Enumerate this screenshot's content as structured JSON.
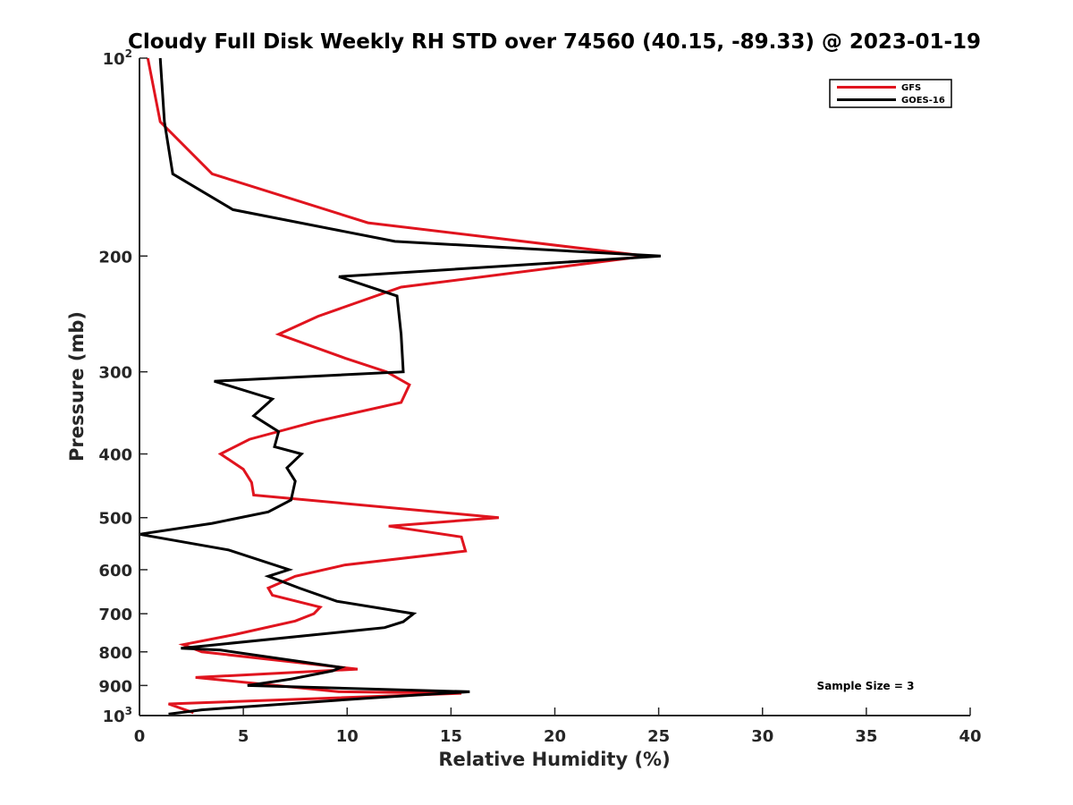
{
  "chart_data": {
    "type": "line",
    "title": "Cloudy Full Disk Weekly RH STD over 74560 (40.15, -89.33) @ 2023-01-19",
    "xlabel": "Relative Humidity (%)",
    "ylabel": "Pressure (mb)",
    "xlim": [
      0,
      40
    ],
    "ylim": [
      100,
      1000
    ],
    "y_scale": "log",
    "y_reversed": true,
    "x_ticks": [
      0,
      5,
      10,
      15,
      20,
      25,
      30,
      35,
      40
    ],
    "y_ticks": [
      {
        "value": 100,
        "base": "10",
        "exp": "2"
      },
      {
        "value": 200,
        "label": "200"
      },
      {
        "value": 300,
        "label": "300"
      },
      {
        "value": 400,
        "label": "400"
      },
      {
        "value": 500,
        "label": "500"
      },
      {
        "value": 600,
        "label": "600"
      },
      {
        "value": 700,
        "label": "700"
      },
      {
        "value": 800,
        "label": "800"
      },
      {
        "value": 900,
        "label": "900"
      },
      {
        "value": 1000,
        "base": "10",
        "exp": "3"
      }
    ],
    "grid": false,
    "legend_position": "top-right",
    "annotation": "Sample Size = 3",
    "series": [
      {
        "name": "GFS",
        "color": "#e0141e",
        "points": [
          [
            0.4,
            100
          ],
          [
            1.0,
            125
          ],
          [
            3.5,
            150
          ],
          [
            11.0,
            178
          ],
          [
            24.4,
            200
          ],
          [
            12.6,
            223
          ],
          [
            8.6,
            247
          ],
          [
            6.7,
            263
          ],
          [
            9.9,
            286
          ],
          [
            11.9,
            300
          ],
          [
            13.0,
            314
          ],
          [
            12.6,
            334
          ],
          [
            8.5,
            357
          ],
          [
            5.3,
            380
          ],
          [
            3.9,
            400
          ],
          [
            5.0,
            422
          ],
          [
            5.4,
            442
          ],
          [
            5.5,
            462
          ],
          [
            17.3,
            500
          ],
          [
            12.0,
            515
          ],
          [
            15.5,
            535
          ],
          [
            15.7,
            562
          ],
          [
            9.9,
            590
          ],
          [
            7.5,
            614
          ],
          [
            6.2,
            640
          ],
          [
            6.4,
            656
          ],
          [
            8.7,
            684
          ],
          [
            8.4,
            700
          ],
          [
            7.5,
            718
          ],
          [
            4.6,
            753
          ],
          [
            2.1,
            780
          ],
          [
            3.0,
            800
          ],
          [
            10.5,
            850
          ],
          [
            2.7,
            875
          ],
          [
            9.6,
            920
          ],
          [
            15.5,
            925
          ],
          [
            1.4,
            960
          ],
          [
            2.6,
            990
          ]
        ]
      },
      {
        "name": "GOES-16",
        "color": "#000000",
        "points": [
          [
            1.0,
            100
          ],
          [
            1.2,
            125
          ],
          [
            1.6,
            150
          ],
          [
            4.5,
            170
          ],
          [
            12.3,
            190
          ],
          [
            25.1,
            200
          ],
          [
            9.6,
            215
          ],
          [
            12.4,
            230
          ],
          [
            12.6,
            263
          ],
          [
            12.7,
            300
          ],
          [
            3.6,
            310
          ],
          [
            6.4,
            330
          ],
          [
            5.5,
            350
          ],
          [
            6.7,
            370
          ],
          [
            6.5,
            390
          ],
          [
            7.8,
            400
          ],
          [
            7.1,
            420
          ],
          [
            7.5,
            440
          ],
          [
            7.3,
            470
          ],
          [
            6.2,
            490
          ],
          [
            3.5,
            510
          ],
          [
            0.0,
            530
          ],
          [
            4.3,
            560
          ],
          [
            7.2,
            600
          ],
          [
            6.2,
            614
          ],
          [
            7.7,
            640
          ],
          [
            9.5,
            670
          ],
          [
            13.2,
            700
          ],
          [
            12.7,
            720
          ],
          [
            11.8,
            735
          ],
          [
            2.0,
            790
          ],
          [
            3.9,
            795
          ],
          [
            9.7,
            845
          ],
          [
            9.3,
            855
          ],
          [
            7.3,
            880
          ],
          [
            5.2,
            900
          ],
          [
            15.9,
            920
          ],
          [
            11.2,
            940
          ],
          [
            3.0,
            980
          ],
          [
            1.4,
            995
          ]
        ]
      }
    ]
  }
}
